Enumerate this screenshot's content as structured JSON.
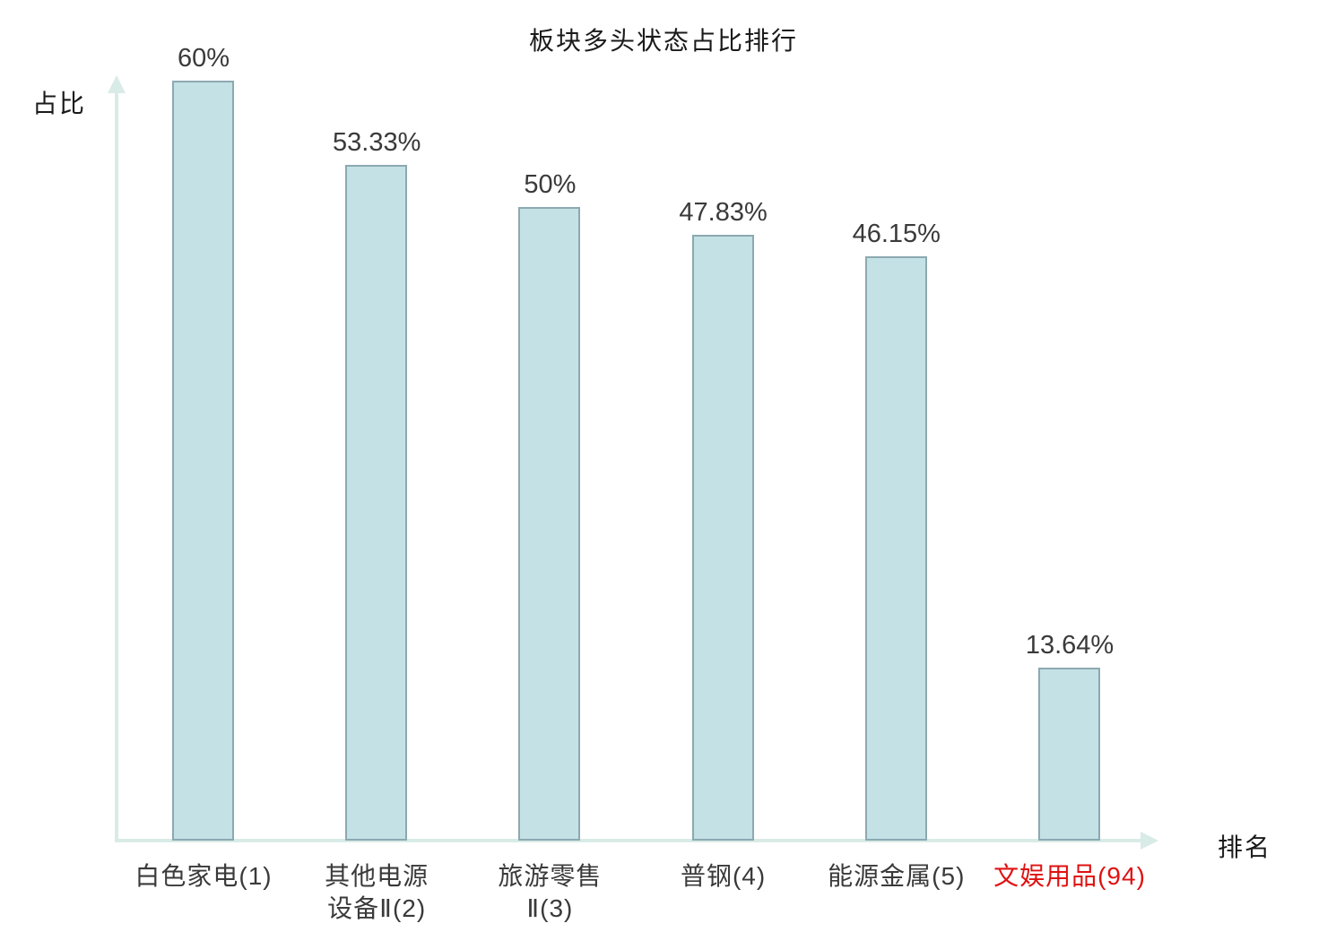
{
  "chart_data": {
    "type": "bar",
    "title": "板块多头状态占比排行",
    "xlabel": "排名",
    "ylabel": "占比",
    "categories": [
      "白色家电(1)",
      "其他电源设备Ⅱ(2)",
      "旅游零售Ⅱ(3)",
      "普钢(4)",
      "能源金属(5)",
      "文娱用品(94)"
    ],
    "category_lines": [
      [
        "白色家电(1)"
      ],
      [
        "其他电源",
        "设备Ⅱ(2)"
      ],
      [
        "旅游零售",
        "Ⅱ(3)"
      ],
      [
        "普钢(4)"
      ],
      [
        "能源金属(5)"
      ],
      [
        "文娱用品(94)"
      ]
    ],
    "values": [
      60,
      53.33,
      50,
      47.83,
      46.15,
      13.64
    ],
    "value_labels": [
      "60%",
      "53.33%",
      "50%",
      "47.83%",
      "46.15%",
      "13.64%"
    ],
    "highlight_index": 5,
    "ylim": [
      0,
      62
    ],
    "grid": false,
    "legend": null,
    "colors": {
      "bar_fill": "#c4e1e5",
      "bar_border": "#8ca9b1",
      "axis": "#d9ebe6",
      "value_text": "#3a3a3a",
      "title_text": "#1a1a1a",
      "highlight_text": "#e01111"
    }
  }
}
